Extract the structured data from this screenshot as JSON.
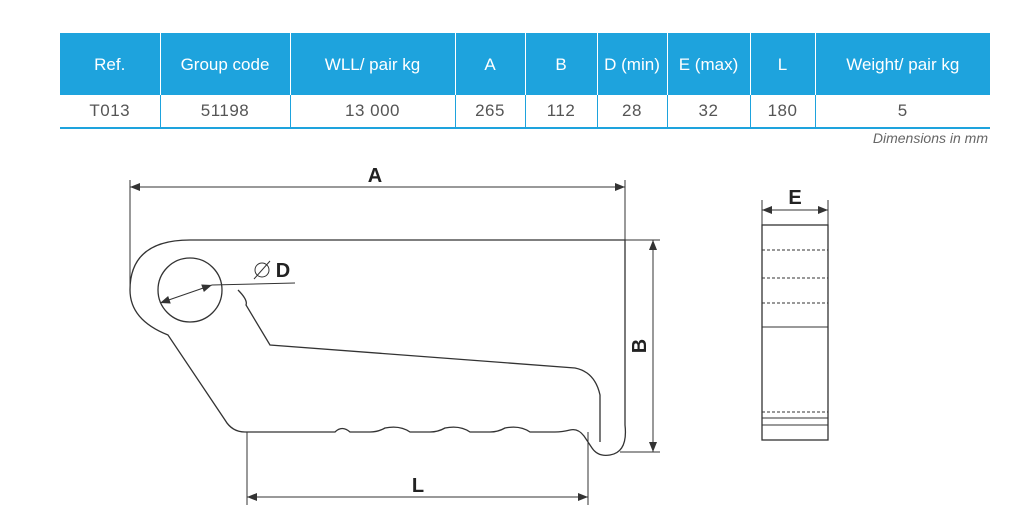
{
  "table": {
    "header": [
      "Ref.",
      "Group code",
      "WLL/ pair kg",
      "A",
      "B",
      "D (min)",
      "E (max)",
      "L",
      "Weight/ pair kg"
    ],
    "rows": [
      [
        "T013",
        "51198",
        "13 000",
        "265",
        "112",
        "28",
        "32",
        "180",
        "5"
      ]
    ]
  },
  "note": "Dimensions in mm",
  "drawing": {
    "labels": {
      "a": "A",
      "b": "B",
      "d": "D",
      "l": "L",
      "e": "E"
    }
  }
}
